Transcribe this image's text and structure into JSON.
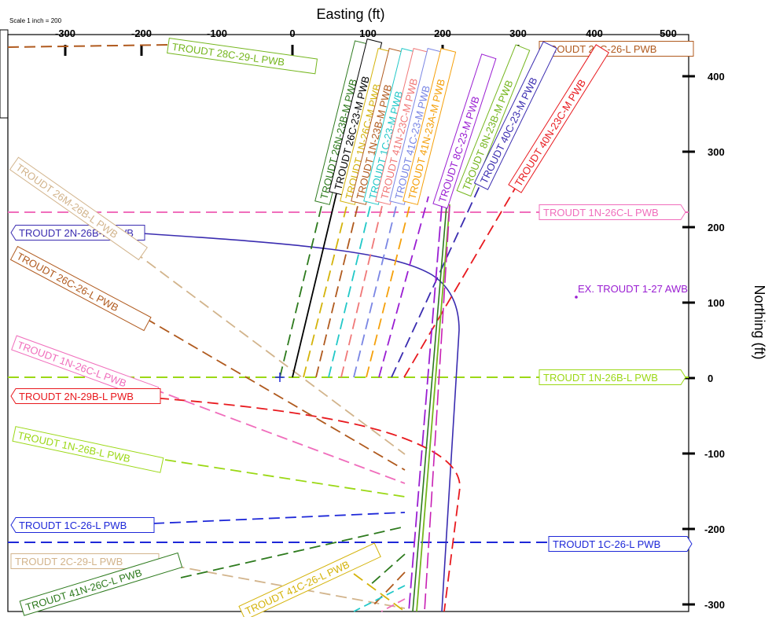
{
  "diagram": {
    "scale_note": "Scale 1 inch = 200",
    "x_axis_title": "Easting (ft)",
    "y_axis_title": "Northing (ft)",
    "x_ticks": [
      "-300",
      "-200",
      "-100",
      "0",
      "100",
      "200",
      "300",
      "400",
      "500"
    ],
    "y_ticks": [
      "400",
      "300",
      "200",
      "100",
      "0",
      "-100",
      "-200",
      "-300"
    ],
    "point_label": "EX. TROUDT 1-27 AWB",
    "colors": {
      "brown": "#b05a1e",
      "tan": "#d2b48c",
      "pink": "#f06ebc",
      "red": "#e8191e",
      "lime": "#9bd815",
      "blue": "#1e28d8",
      "indigo": "#3a2cb0",
      "green": "#2d7a1d",
      "gold": "#d4b30a",
      "olive": "#75b61e",
      "black": "#000000",
      "salmon": "#f07878",
      "teal": "#22c8c8",
      "lavender": "#7a86e4",
      "orange": "#f5a00a",
      "purple": "#9a1ed2",
      "magenta": "#c820b4",
      "point": "#9a1ed2"
    },
    "labels": [
      {
        "id": "l-2n26b",
        "text": "TROUDT 2N-26B-L PWB",
        "color": "indigo"
      },
      {
        "id": "l-26m26b",
        "text": "TROUDT 26M-26B-L PWB",
        "color": "tan"
      },
      {
        "id": "l-26c26l-left",
        "text": "TROUDT 26C-26-L PWB",
        "color": "brown"
      },
      {
        "id": "l-1n26c-left",
        "text": "TROUDT 1N-26C-L PWB",
        "color": "pink"
      },
      {
        "id": "l-2n29b",
        "text": "TROUDT 2N-29B-L PWB",
        "color": "red"
      },
      {
        "id": "l-1n26b-left",
        "text": "TROUDT 1N-26B-L PWB",
        "color": "lime"
      },
      {
        "id": "l-1c26l-left",
        "text": "TROUDT 1C-26-L PWB",
        "color": "blue"
      },
      {
        "id": "l-2c29l",
        "text": "TROUDT 2C-29-L PWB",
        "color": "tan"
      },
      {
        "id": "l-41n26c",
        "text": "TROUDT 41N-26C-L PWB",
        "color": "green"
      },
      {
        "id": "l-41c26l",
        "text": "TROUDT 41C-26-L PWB",
        "color": "gold"
      },
      {
        "id": "l-28c29l",
        "text": "TROUDT 28C-29-L PWB",
        "color": "olive"
      },
      {
        "id": "l-26c26l-right",
        "text": "TROUDT 26C-26-L PWB",
        "color": "brown"
      },
      {
        "id": "l-1n26c-right",
        "text": "TROUDT 1N-26C-L PWB",
        "color": "pink"
      },
      {
        "id": "l-1n26b-right",
        "text": "TROUDT 1N-26B-L PWB",
        "color": "lime"
      },
      {
        "id": "l-1c26l-right",
        "text": "TROUDT 1C-26-L PWB",
        "color": "blue"
      },
      {
        "id": "l-26n23b",
        "text": "TROUDT 26N-23B-M PWB",
        "color": "green"
      },
      {
        "id": "l-26c23m",
        "text": "TROUDT 26C-23-M PWB",
        "color": "black"
      },
      {
        "id": "l-1n26cm",
        "text": "TROUDT 1N-26C-M PWB",
        "color": "gold"
      },
      {
        "id": "l-1n23b",
        "text": "TROUDT 1N-23B-M PWB",
        "color": "brown"
      },
      {
        "id": "l-1c23m",
        "text": "TROUDT 1C-23-M PWB",
        "color": "teal"
      },
      {
        "id": "l-41n23c",
        "text": "TROUDT 41N-23C-M PWB",
        "color": "salmon"
      },
      {
        "id": "l-41c23m",
        "text": "TROUDT 41C-23-M PWB",
        "color": "lavender"
      },
      {
        "id": "l-41n23a",
        "text": "TROUDT 41N-23A-M PWB",
        "color": "orange"
      },
      {
        "id": "l-8c23m",
        "text": "TROUDT 8C-23-M PWB",
        "color": "purple"
      },
      {
        "id": "l-8n23b",
        "text": "TROUDT 8N-23B-M PWB",
        "color": "olive"
      },
      {
        "id": "l-40c23m",
        "text": "TROUDT 40C-23-M PWB",
        "color": "indigo"
      },
      {
        "id": "l-40n23c",
        "text": "TROUDT 40N-23C-M PWB",
        "color": "red"
      }
    ]
  }
}
